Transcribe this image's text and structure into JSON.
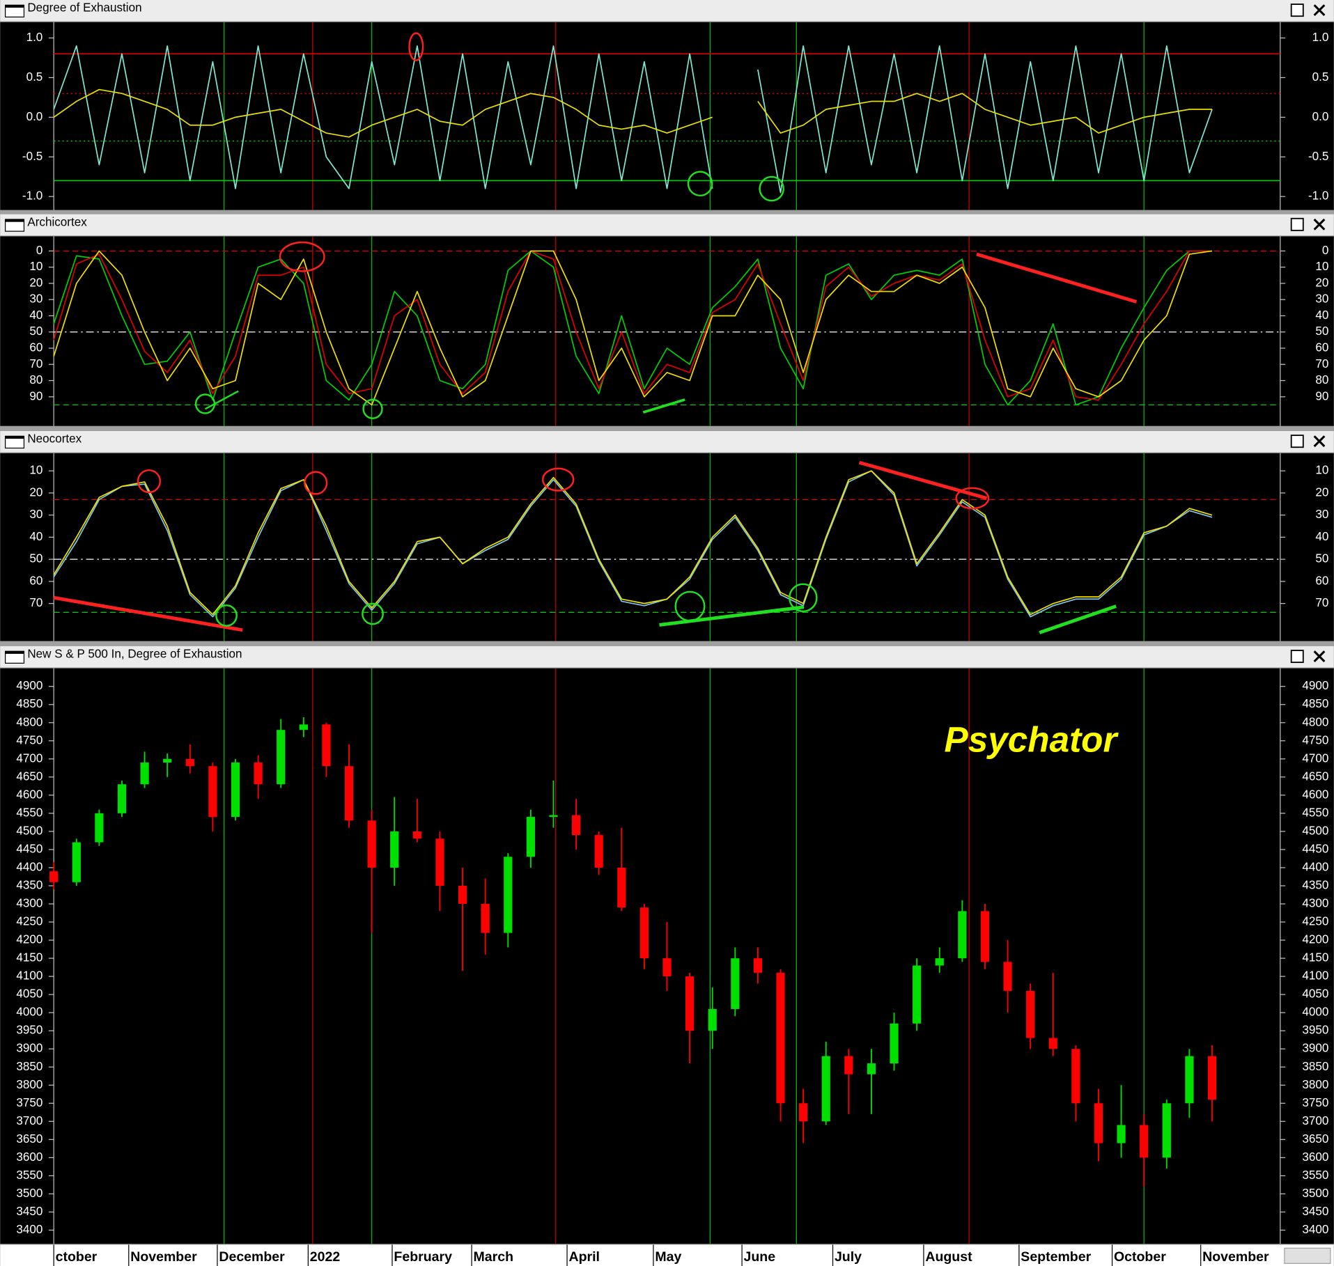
{
  "chart_data": [
    {
      "type": "line",
      "title": "Degree of Exhaustion",
      "xlim": [
        0,
        54
      ],
      "ylim": [
        -1.17,
        1.2
      ],
      "yticks": [
        {
          "value": 1,
          "label": "1.0"
        },
        {
          "value": 0.5,
          "label": "0.5"
        },
        {
          "value": 0,
          "label": "0.0"
        },
        {
          "value": -0.5,
          "label": "-0.5"
        },
        {
          "value": -1,
          "label": "-1.0"
        }
      ],
      "hlines": [
        {
          "value": 0.8,
          "color": "#e00000",
          "style": "solid"
        },
        {
          "value": 0.3,
          "color": "#e00000",
          "style": "dotted"
        },
        {
          "value": -0.3,
          "color": "#00d000",
          "style": "dotted"
        },
        {
          "value": -0.8,
          "color": "#00d000",
          "style": "solid"
        }
      ],
      "series": [
        {
          "color": "#80e8d0",
          "values": [
            0.1,
            0.9,
            -0.6,
            0.8,
            -0.7,
            0.9,
            -0.8,
            0.7,
            -0.9,
            0.9,
            -0.7,
            0.8,
            -0.5,
            -0.9,
            0.7,
            -0.6,
            0.9,
            -0.8,
            0.8,
            -0.9,
            0.7,
            -0.6,
            0.9,
            -0.9,
            0.8,
            -0.8,
            0.7,
            -0.9,
            0.8,
            -0.9,
            null,
            0.6,
            -0.95,
            0.9,
            -0.7,
            0.9,
            -0.6,
            0.8,
            -0.7,
            0.9,
            -0.8,
            0.8,
            -0.9,
            0.7,
            -0.8,
            0.9,
            -0.7,
            0.8,
            -0.8,
            0.9,
            -0.7,
            0.1
          ]
        },
        {
          "color": "#e8e000",
          "values": [
            0.0,
            0.2,
            0.35,
            0.3,
            0.2,
            0.1,
            -0.1,
            -0.1,
            0.0,
            0.05,
            0.1,
            -0.05,
            -0.2,
            -0.25,
            -0.1,
            0.0,
            0.1,
            -0.05,
            -0.1,
            0.1,
            0.2,
            0.3,
            0.25,
            0.1,
            -0.1,
            -0.15,
            -0.1,
            -0.2,
            -0.1,
            0.0,
            null,
            0.2,
            -0.2,
            -0.1,
            0.1,
            0.15,
            0.2,
            0.2,
            0.3,
            0.2,
            0.3,
            0.1,
            0.0,
            -0.1,
            -0.05,
            0.0,
            -0.2,
            -0.1,
            0.0,
            0.05,
            0.1,
            0.1
          ]
        }
      ]
    },
    {
      "type": "line",
      "title": "Archicortex",
      "xlim": [
        0,
        54
      ],
      "ylim": [
        108,
        -9
      ],
      "yticks": [
        0,
        10,
        20,
        30,
        40,
        50,
        60,
        70,
        80,
        90
      ],
      "hlines": [
        {
          "value": 0,
          "color": "#e00000",
          "style": "dashed"
        },
        {
          "value": 50,
          "color": "#ffffff",
          "style": "dashdot"
        },
        {
          "value": 95,
          "color": "#00d000",
          "style": "dashed"
        }
      ],
      "series": [
        {
          "color": "#00d000",
          "values": [
            45,
            3,
            5,
            40,
            70,
            68,
            50,
            92,
            50,
            10,
            5,
            20,
            80,
            92,
            70,
            25,
            40,
            80,
            85,
            70,
            12,
            0,
            10,
            65,
            88,
            40,
            85,
            60,
            70,
            35,
            22,
            5,
            60,
            85,
            15,
            8,
            30,
            15,
            12,
            15,
            5,
            70,
            95,
            80,
            45,
            95,
            90,
            60,
            35,
            12,
            0,
            0
          ]
        },
        {
          "color": "#e00000",
          "values": [
            55,
            8,
            2,
            30,
            62,
            75,
            55,
            88,
            65,
            15,
            15,
            10,
            70,
            88,
            85,
            40,
            30,
            70,
            88,
            75,
            25,
            0,
            5,
            50,
            85,
            50,
            88,
            70,
            75,
            38,
            30,
            8,
            45,
            80,
            22,
            10,
            28,
            20,
            15,
            18,
            8,
            55,
            90,
            85,
            55,
            90,
            92,
            70,
            45,
            25,
            0,
            0
          ]
        },
        {
          "color": "#f0e000",
          "values": [
            65,
            20,
            0,
            15,
            50,
            80,
            60,
            85,
            80,
            20,
            30,
            5,
            50,
            85,
            95,
            60,
            25,
            60,
            90,
            80,
            40,
            0,
            0,
            30,
            80,
            60,
            90,
            75,
            80,
            40,
            40,
            15,
            30,
            75,
            30,
            15,
            25,
            25,
            15,
            20,
            10,
            35,
            85,
            90,
            60,
            85,
            90,
            80,
            55,
            40,
            2,
            0
          ]
        }
      ]
    },
    {
      "type": "line",
      "title": "Neocortex",
      "xlim": [
        0,
        54
      ],
      "ylim": [
        87,
        2
      ],
      "yticks": [
        10,
        20,
        30,
        40,
        50,
        60,
        70
      ],
      "hlines": [
        {
          "value": 23,
          "color": "#e00000",
          "style": "dashed"
        },
        {
          "value": 50,
          "color": "#ffffff",
          "style": "dashdot"
        },
        {
          "value": 74,
          "color": "#00d000",
          "style": "dashed"
        }
      ],
      "series": [
        {
          "color": "#80c8e8",
          "values": [
            58,
            42,
            23,
            17,
            16,
            37,
            66,
            76,
            63,
            40,
            19,
            14,
            37,
            61,
            73,
            61,
            43,
            40,
            52,
            46,
            41,
            26,
            14,
            26,
            51,
            69,
            71,
            68,
            59,
            41,
            31,
            46,
            66,
            71,
            41,
            15,
            10,
            21,
            53,
            39,
            24,
            31,
            59,
            76,
            71,
            68,
            68,
            59,
            39,
            35,
            28,
            31
          ]
        },
        {
          "color": "#f0e000",
          "values": [
            57,
            40,
            22,
            17,
            15,
            35,
            65,
            75,
            62,
            38,
            18,
            14,
            35,
            60,
            72,
            60,
            42,
            40,
            52,
            45,
            40,
            25,
            13,
            25,
            50,
            68,
            70,
            68,
            58,
            40,
            30,
            45,
            65,
            70,
            40,
            14,
            10,
            20,
            52,
            38,
            23,
            30,
            58,
            75,
            70,
            67,
            67,
            58,
            38,
            35,
            27,
            30
          ]
        }
      ]
    },
    {
      "type": "candlestick",
      "title": "New S & P 500 In, Degree of Exhaustion",
      "xlim": [
        0,
        54
      ],
      "ylim": [
        3362,
        4950
      ],
      "yticks": [
        3400,
        3450,
        3500,
        3550,
        3600,
        3650,
        3700,
        3750,
        3800,
        3850,
        3900,
        3950,
        4000,
        4050,
        4100,
        4150,
        4200,
        4250,
        4300,
        4350,
        4400,
        4450,
        4500,
        4550,
        4600,
        4650,
        4700,
        4750,
        4800,
        4850,
        4900
      ],
      "xticks": [
        {
          "value": 0,
          "label": "ctober"
        },
        {
          "value": 3.3,
          "label": "November"
        },
        {
          "value": 7.2,
          "label": "December"
        },
        {
          "value": 11.2,
          "label": "2022"
        },
        {
          "value": 14.9,
          "label": "February"
        },
        {
          "value": 18.4,
          "label": "March"
        },
        {
          "value": 22.6,
          "label": "April"
        },
        {
          "value": 26.4,
          "label": "May"
        },
        {
          "value": 30.3,
          "label": "June"
        },
        {
          "value": 34.3,
          "label": "July"
        },
        {
          "value": 38.3,
          "label": "August"
        },
        {
          "value": 42.5,
          "label": "September"
        },
        {
          "value": 46.6,
          "label": "October"
        },
        {
          "value": 50.5,
          "label": "November"
        }
      ],
      "up_color": "#00e000",
      "down_color": "#ff0000",
      "open": [
        4390,
        4360,
        4470,
        4550,
        4630,
        4690,
        4700,
        4680,
        4540,
        4690,
        4630,
        4780,
        4795,
        4680,
        4530,
        4400,
        4500,
        4480,
        4350,
        4300,
        4220,
        4430,
        4540,
        4545,
        4490,
        4400,
        4290,
        4150,
        4100,
        3950,
        4010,
        4150,
        4110,
        3750,
        3700,
        3880,
        3830,
        3860,
        3970,
        4130,
        4150,
        4280,
        4140,
        4060,
        3930,
        3900,
        3750,
        3640,
        3690,
        3600,
        3750,
        3880
      ],
      "high": [
        4415,
        4480,
        4560,
        4640,
        4720,
        4715,
        4740,
        4690,
        4700,
        4710,
        4810,
        4815,
        4800,
        4740,
        4560,
        4595,
        4590,
        4500,
        4400,
        4370,
        4440,
        4560,
        4640,
        4590,
        4500,
        4510,
        4300,
        4250,
        4110,
        4070,
        4180,
        4180,
        4120,
        3790,
        3920,
        3900,
        3900,
        4000,
        4150,
        4180,
        4310,
        4300,
        4200,
        4080,
        4110,
        3910,
        3790,
        3800,
        3720,
        3760,
        3900,
        3910
      ],
      "low": [
        4340,
        4350,
        4460,
        4540,
        4620,
        4650,
        4660,
        4500,
        4530,
        4590,
        4620,
        4760,
        4650,
        4510,
        4220,
        4350,
        4470,
        4280,
        4115,
        4160,
        4180,
        4400,
        4510,
        4450,
        4380,
        4280,
        4120,
        4060,
        3860,
        3900,
        3990,
        4080,
        3700,
        3640,
        3690,
        3720,
        3720,
        3840,
        3950,
        4110,
        4140,
        4120,
        4000,
        3900,
        3880,
        3700,
        3590,
        3600,
        3520,
        3570,
        3710,
        3700
      ],
      "close": [
        4360,
        4470,
        4550,
        4630,
        4690,
        4700,
        4680,
        4540,
        4690,
        4630,
        4780,
        4795,
        4680,
        4530,
        4400,
        4500,
        4480,
        4350,
        4300,
        4220,
        4430,
        4540,
        4545,
        4490,
        4400,
        4290,
        4150,
        4100,
        3950,
        4010,
        4150,
        4110,
        3750,
        3700,
        3880,
        3830,
        3860,
        3970,
        4130,
        4150,
        4280,
        4140,
        4060,
        3930,
        3900,
        3750,
        3640,
        3690,
        3600,
        3750,
        3880,
        3760
      ],
      "annotation": "Psychator",
      "annotation_color": "#ffff00"
    }
  ],
  "events": [
    {
      "x": 7.5,
      "color": "#00c000"
    },
    {
      "x": 11.4,
      "color": "#d00000"
    },
    {
      "x": 14.0,
      "color": "#00c000"
    },
    {
      "x": 22.1,
      "color": "#d00000"
    },
    {
      "x": 28.9,
      "color": "#00c000"
    },
    {
      "x": 32.7,
      "color": "#00c000"
    },
    {
      "x": 40.3,
      "color": "#d00000"
    },
    {
      "x": 48.0,
      "color": "#00c000"
    }
  ]
}
